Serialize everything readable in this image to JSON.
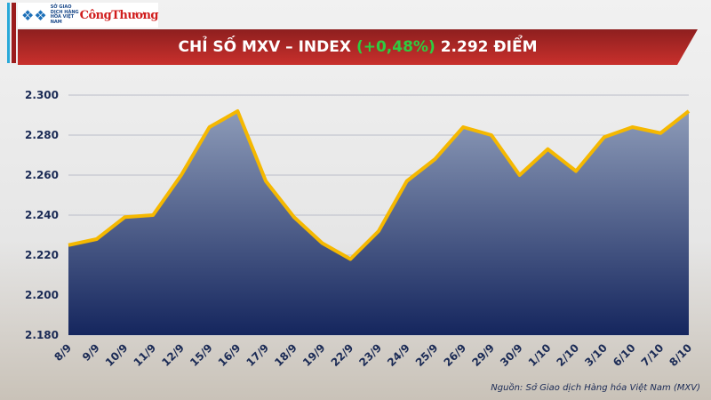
{
  "header": {
    "logo_text": "SỞ GIAO DỊCH HÀNG HÓA VIỆT NAM",
    "brand": "CôngThương",
    "title_prefix": "CHỈ SỐ MXV – INDEX",
    "title_change": "(+0,48%)",
    "title_suffix": "2.292 ĐIỂM"
  },
  "source": "Nguồn: Sở Giao dịch Hàng hóa Việt Nam (MXV)",
  "colors": {
    "line": "#f5b800",
    "area_top": "#8d9bb8",
    "area_bottom": "#15265e",
    "change": "#2ecc40",
    "banner": "#b72a27"
  },
  "chart_data": {
    "type": "area",
    "categories": [
      "8/9",
      "9/9",
      "10/9",
      "11/9",
      "12/9",
      "15/9",
      "16/9",
      "17/9",
      "18/9",
      "19/9",
      "22/9",
      "23/9",
      "24/9",
      "25/9",
      "26/9",
      "29/9",
      "30/9",
      "1/10",
      "2/10",
      "3/10",
      "6/10",
      "7/10",
      "8/10"
    ],
    "values": [
      2225,
      2228,
      2239,
      2240,
      2260,
      2284,
      2292,
      2257,
      2239,
      2226,
      2218,
      2232,
      2257,
      2268,
      2284,
      2280,
      2260,
      2273,
      2262,
      2279,
      2284,
      2281,
      2292
    ],
    "ylim": [
      2180,
      2300
    ],
    "yticks": [
      "2.180",
      "2.200",
      "2.220",
      "2.240",
      "2.260",
      "2.280",
      "2.300"
    ],
    "grid": true
  }
}
